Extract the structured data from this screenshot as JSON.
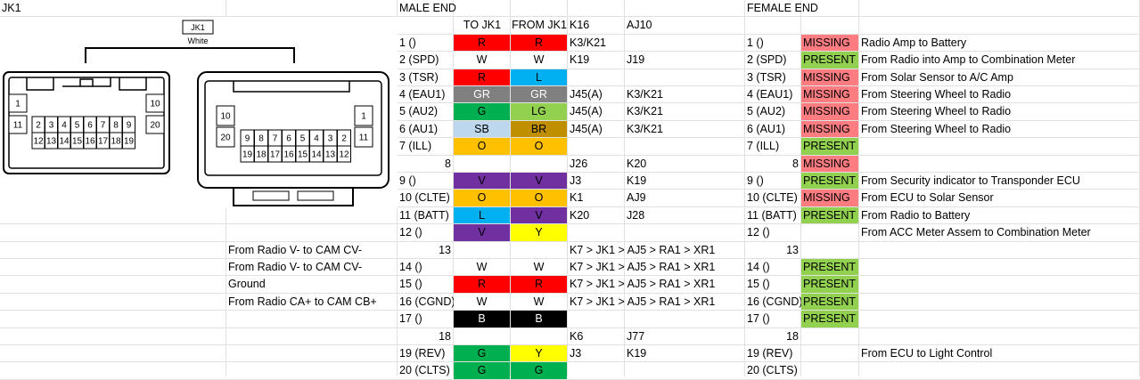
{
  "colors": {
    "R": "#ff0000",
    "W": "#ffffff",
    "L": "#00b0f0",
    "GR": "#808080",
    "G": "#00b050",
    "LG": "#92d050",
    "SB": "#bdd7ee",
    "BR": "#bf8f00",
    "O": "#ffc000",
    "V": "#7030a0",
    "Y": "#ffff00",
    "B": "#000000",
    "missing": "#ff7c80",
    "present": "#92d050"
  },
  "jk1_title": "JK1",
  "connector": {
    "name": "JK1",
    "color": "White",
    "left_pins": {
      "top_side": [
        "1",
        "11"
      ],
      "row1": [
        "2",
        "3",
        "4",
        "5",
        "6",
        "7",
        "8",
        "9"
      ],
      "row2": [
        "12",
        "13",
        "14",
        "15",
        "16",
        "17",
        "18",
        "19"
      ],
      "right_side": [
        "10",
        "20"
      ]
    },
    "right_pins": {
      "left_side": [
        "10",
        "20"
      ],
      "row1": [
        "9",
        "8",
        "7",
        "6",
        "5",
        "4",
        "3",
        "2"
      ],
      "row2": [
        "19",
        "18",
        "17",
        "16",
        "15",
        "14",
        "13",
        "12"
      ],
      "right_side": [
        "1",
        "11"
      ]
    }
  },
  "male": {
    "title": "MALE END",
    "headers": [
      "TO JK1",
      "FROM JK1",
      "K16",
      "AJ10"
    ],
    "rows": [
      {
        "pin": "1 ()",
        "to": "R",
        "from": "R",
        "a": "K3/K21",
        "b": ""
      },
      {
        "pin": "2 (SPD)",
        "to": "W",
        "from": "W",
        "a": "K19",
        "b": "J19"
      },
      {
        "pin": "3 (TSR)",
        "to": "R",
        "from": "L",
        "a": "",
        "b": ""
      },
      {
        "pin": "4 (EAU1)",
        "to": "GR",
        "from": "GR",
        "a": "J45(A)",
        "b": "K3/K21"
      },
      {
        "pin": "5 (AU2)",
        "to": "G",
        "from": "LG",
        "a": "J45(A)",
        "b": "K3/K21"
      },
      {
        "pin": "6 (AU1)",
        "to": "SB",
        "from": "BR",
        "a": "J45(A)",
        "b": "K3/K21"
      },
      {
        "pin": "7 (ILL)",
        "to": "O",
        "from": "O",
        "a": "",
        "b": ""
      },
      {
        "pin": "8",
        "to": "",
        "from": "",
        "a": "J26",
        "b": "K20",
        "num": true
      },
      {
        "pin": "9 ()",
        "to": "V",
        "from": "V",
        "a": "J3",
        "b": "K19"
      },
      {
        "pin": "10 (CLTE)",
        "to": "O",
        "from": "O",
        "a": "K1",
        "b": "AJ9"
      },
      {
        "pin": "11 (BATT)",
        "to": "L",
        "from": "V",
        "a": "K20",
        "b": "J28"
      },
      {
        "pin": "12 ()",
        "to": "V",
        "from": "Y",
        "a": "",
        "b": ""
      },
      {
        "pin": "13",
        "to": "",
        "from": "",
        "a": "K7 > JK1 > AJ5 > RA1 > XR1",
        "b": "",
        "num": true
      },
      {
        "pin": "14 ()",
        "to": "W",
        "from": "W",
        "a": "K7 > JK1 > AJ5 > RA1 > XR1",
        "b": ""
      },
      {
        "pin": "15 ()",
        "to": "R",
        "from": "R",
        "a": "K7 > JK1 > AJ5 > RA1 > XR1",
        "b": ""
      },
      {
        "pin": "16 (CGND)",
        "to": "W",
        "from": "W",
        "a": "K7 > JK1 > AJ5 > RA1 > XR1",
        "b": ""
      },
      {
        "pin": "17 ()",
        "to": "B",
        "from": "B",
        "a": "",
        "b": ""
      },
      {
        "pin": "18",
        "to": "",
        "from": "",
        "a": "K6",
        "b": "J77",
        "num": true
      },
      {
        "pin": "19 (REV)",
        "to": "G",
        "from": "Y",
        "a": "J3",
        "b": "K19"
      },
      {
        "pin": "20 (CLTS)",
        "to": "G",
        "from": "G",
        "a": "",
        "b": ""
      }
    ]
  },
  "left_notes": [
    {
      "row": 12,
      "text": "From Radio V- to CAM CV-"
    },
    {
      "row": 13,
      "text": "From Radio V- to CAM CV-"
    },
    {
      "row": 14,
      "text": "Ground"
    },
    {
      "row": 15,
      "text": "From Radio CA+ to CAM CB+"
    }
  ],
  "female": {
    "title": "FEMALE END",
    "rows": [
      {
        "pin": "1 ()",
        "status": "MISSING",
        "desc": "Radio Amp to Battery"
      },
      {
        "pin": "2 (SPD)",
        "status": "PRESENT",
        "desc": "From Radio into Amp to Combination Meter"
      },
      {
        "pin": "3 (TSR)",
        "status": "MISSING",
        "desc": "From Solar Sensor to A/C Amp"
      },
      {
        "pin": "4 (EAU1)",
        "status": "MISSING",
        "desc": "From Steering Wheel to Radio"
      },
      {
        "pin": "5 (AU2)",
        "status": "MISSING",
        "desc": "From Steering Wheel to Radio"
      },
      {
        "pin": "6 (AU1)",
        "status": "MISSING",
        "desc": "From Steering Wheel to Radio"
      },
      {
        "pin": "7 (ILL)",
        "status": "PRESENT",
        "desc": ""
      },
      {
        "pin": "8",
        "status": "MISSING",
        "desc": "",
        "num": true
      },
      {
        "pin": "9 ()",
        "status": "PRESENT",
        "desc": "From Security indicator to Transponder ECU"
      },
      {
        "pin": "10 (CLTE)",
        "status": "MISSING",
        "desc": "From ECU to Solar Sensor"
      },
      {
        "pin": "11 (BATT)",
        "status": "PRESENT",
        "desc": "From Radio to Battery"
      },
      {
        "pin": "12 ()",
        "status": "",
        "desc": "From ACC Meter Assem to Combination Meter"
      },
      {
        "pin": "13",
        "status": "",
        "desc": "",
        "num": true
      },
      {
        "pin": "14 ()",
        "status": "PRESENT",
        "desc": ""
      },
      {
        "pin": "15 ()",
        "status": "PRESENT",
        "desc": ""
      },
      {
        "pin": "16 (CGND)",
        "status": "PRESENT",
        "desc": ""
      },
      {
        "pin": "17 ()",
        "status": "PRESENT",
        "desc": ""
      },
      {
        "pin": "18",
        "status": "",
        "desc": "",
        "num": true
      },
      {
        "pin": "19 (REV)",
        "status": "",
        "desc": "From ECU to Light Control"
      },
      {
        "pin": "20 (CLTS)",
        "status": "",
        "desc": ""
      }
    ]
  }
}
